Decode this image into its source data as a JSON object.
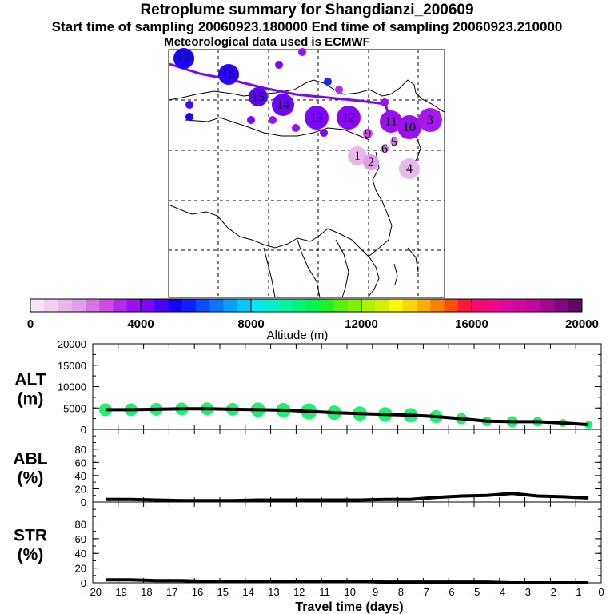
{
  "header": {
    "title": "Retroplume summary for Shangdianzi_200609",
    "sampling": "Start time of sampling 20060923.180000      End time of sampling 20060923.210000",
    "met": "Meteorological data used is ECMWF"
  },
  "colorbar": {
    "xlabel": "Altitude (m)",
    "ticks": [
      "0",
      "4000",
      "8000",
      "12000",
      "16000",
      "20000"
    ],
    "colors": [
      "#f6e6f6",
      "#efd0f0",
      "#e8b8ec",
      "#e19ee8",
      "#d676e6",
      "#c94ce6",
      "#b428ec",
      "#9a10f0",
      "#7a08f4",
      "#4a04f6",
      "#1404f4",
      "#1020f8",
      "#0a4cfa",
      "#0878f8",
      "#08a0fa",
      "#04c8fa",
      "#04e8f0",
      "#04f0c8",
      "#08f4a0",
      "#04f478",
      "#08f450",
      "#20f028",
      "#58f010",
      "#80f008",
      "#b0f004",
      "#d8f008",
      "#f8f808",
      "#f8d808",
      "#f8b008",
      "#f88008",
      "#f85008",
      "#f81838",
      "#f80870",
      "#f00888",
      "#e008a0",
      "#d008a0",
      "#c008a0",
      "#a00890",
      "#800880",
      "#600860"
    ]
  },
  "map_points": [
    {
      "label": "17",
      "size": 13,
      "color": "#1a04f4"
    },
    {
      "label": "16",
      "size": 13,
      "color": "#2a04f4"
    },
    {
      "label": "15",
      "size": 12,
      "color": "#5a06f4"
    },
    {
      "label": "14",
      "size": 14,
      "color": "#6a06f4"
    },
    {
      "label": "13",
      "size": 15,
      "color": "#7a08f4"
    },
    {
      "label": "12",
      "size": 15,
      "color": "#8808f2"
    },
    {
      "label": "11",
      "size": 14,
      "color": "#9a10f0"
    },
    {
      "label": "10",
      "size": 15,
      "color": "#9a10f0"
    },
    {
      "label": "3",
      "size": 15,
      "color": "#a818ee"
    },
    {
      "label": "4",
      "size": 13,
      "color": "#e8b8ec"
    },
    {
      "label": "1",
      "size": 12,
      "color": "#e8b8ec"
    },
    {
      "label": "2",
      "size": 10,
      "color": "#e19ee8"
    },
    {
      "label": "5",
      "size": 5,
      "color": "#d676e6"
    },
    {
      "label": "6",
      "size": 5,
      "color": "#d676e6"
    },
    {
      "label": "9",
      "size": 6,
      "color": "#c94ce6"
    }
  ],
  "chart_data": [
    {
      "type": "line",
      "name": "ALT",
      "ylabel": "ALT\n(m)",
      "ylabel_lines": [
        "ALT",
        "(m)"
      ],
      "ylim": [
        0,
        20000
      ],
      "yticks": [
        "20000",
        "15000",
        "10000",
        "5000",
        "0"
      ],
      "xlim": [
        -20,
        0
      ],
      "x": [
        -20,
        -19,
        -18,
        -17,
        -16,
        -15,
        -14,
        -13,
        -12,
        -11,
        -10,
        -9,
        -8,
        -7,
        -6,
        -5,
        -4,
        -3,
        -2,
        -1
      ],
      "values": [
        4600,
        4600,
        4700,
        4800,
        4800,
        4700,
        4600,
        4500,
        4200,
        3900,
        3700,
        3500,
        3300,
        3000,
        2500,
        1900,
        1800,
        1800,
        1500,
        1100
      ],
      "scatter_color": "#20f070",
      "scatter_sizes": [
        8,
        8,
        8,
        8,
        8,
        8,
        9,
        9,
        10,
        9,
        9,
        9,
        9,
        8,
        7,
        6,
        7,
        6,
        5,
        5
      ]
    },
    {
      "type": "line",
      "name": "ABL",
      "ylabel_lines": [
        "ABL",
        "(%)"
      ],
      "ylim": [
        0,
        100
      ],
      "yticks": [
        "80",
        "60",
        "40",
        "20",
        "0"
      ],
      "x": [
        -20,
        -19,
        -18,
        -17,
        -16,
        -15,
        -14,
        -13,
        -12,
        -11,
        -10,
        -9,
        -8,
        -7,
        -6,
        -5,
        -4,
        -3,
        -2,
        -1
      ],
      "values": [
        4,
        4,
        3,
        2,
        2,
        2,
        3,
        3,
        3,
        3,
        3,
        4,
        4,
        7,
        9,
        10,
        13,
        9,
        8,
        6
      ]
    },
    {
      "type": "line",
      "name": "STR",
      "ylabel_lines": [
        "STR",
        "(%)"
      ],
      "ylim": [
        0,
        100
      ],
      "yticks": [
        "80",
        "60",
        "40",
        "20",
        "0"
      ],
      "x": [
        -20,
        -19,
        -18,
        -17,
        -16,
        -15,
        -14,
        -13,
        -12,
        -11,
        -10,
        -9,
        -8,
        -7,
        -6,
        -5,
        -4,
        -3,
        -2,
        -1
      ],
      "values": [
        4,
        4,
        3,
        3,
        2,
        2,
        2,
        2,
        2,
        2,
        2,
        1,
        1,
        1,
        1,
        1,
        0,
        0,
        0,
        0
      ]
    }
  ],
  "xaxis": {
    "label": "Travel time (days)",
    "ticks": [
      "−20",
      "−19",
      "−18",
      "−17",
      "−16",
      "−15",
      "−14",
      "−13",
      "−12",
      "−11",
      "−10",
      "−9",
      "−8",
      "−7",
      "−6",
      "−5",
      "−4",
      "−3",
      "−2",
      "−1",
      "0"
    ]
  }
}
